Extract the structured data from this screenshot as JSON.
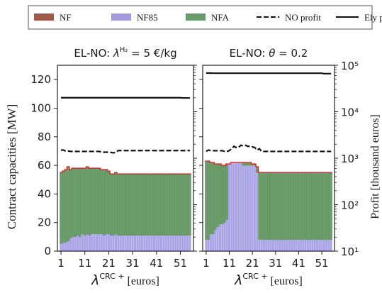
{
  "chart_data": {
    "type": "bar",
    "legend": {
      "placement": "top",
      "entries": [
        {
          "name": "NF",
          "kind": "patch",
          "color": "#a0584a"
        },
        {
          "name": "NF85",
          "kind": "patch",
          "color": "#a49ae0"
        },
        {
          "name": "NFA",
          "kind": "patch",
          "color": "#6a9b6a"
        },
        {
          "name": "NO profit",
          "kind": "dashed-line",
          "color": "#111111"
        },
        {
          "name": "Ely profit",
          "kind": "line",
          "color": "#111111"
        }
      ]
    },
    "ylabel": "Contract capacities [MW]",
    "y2label": "Profit [thousand euros]",
    "colors": {
      "nf85": "#aaa3e6",
      "nfa": "#6c9e6c",
      "envelope": "#e0201a",
      "profit": "#111111"
    },
    "panels": [
      {
        "id": "left",
        "title_prefix": "EL-NO: ",
        "title_math": "λ",
        "title_sup": "H₂",
        "title_suffix": " = 5 €/kg",
        "xlabel_math": "λ",
        "xlabel_sup": "CRC +",
        "xlabel_unit": " [euros]",
        "x": [
          1,
          2,
          3,
          4,
          5,
          6,
          7,
          8,
          9,
          10,
          11,
          12,
          13,
          14,
          15,
          16,
          17,
          18,
          19,
          20,
          21,
          22,
          23,
          24,
          25,
          26,
          27,
          28,
          29,
          30,
          31,
          32,
          33,
          34,
          35,
          36,
          37,
          38,
          39,
          40,
          41,
          42,
          43,
          44,
          45,
          46,
          47,
          48,
          49,
          50,
          51,
          52,
          53,
          54,
          55
        ],
        "xticks": [
          1,
          11,
          21,
          31,
          41,
          51
        ],
        "xlim": [
          -0.5,
          56.5
        ],
        "ylim": [
          0,
          130
        ],
        "yticks": [
          0,
          20,
          40,
          60,
          80,
          100,
          120
        ],
        "y2lim": [
          10,
          100000
        ],
        "y2ticks": [
          10,
          100,
          1000,
          10000,
          100000
        ],
        "y2ticklabels": [
          "10¹",
          "10²",
          "10³",
          "10⁴",
          "10⁵"
        ],
        "series": [
          {
            "name": "NF85",
            "values": [
              5,
              6,
              6,
              7,
              9,
              10,
              10,
              11,
              10,
              12,
              11,
              12,
              11,
              12,
              12,
              12,
              12,
              12,
              11,
              12,
              12,
              11,
              11,
              12,
              11,
              11,
              11,
              11,
              11,
              11,
              11,
              11,
              11,
              11,
              11,
              11,
              11,
              11,
              11,
              11,
              11,
              11,
              11,
              11,
              11,
              11,
              11,
              11,
              11,
              11,
              11,
              11,
              11,
              11,
              11
            ]
          },
          {
            "name": "NFA",
            "values": [
              50,
              50,
              51,
              52,
              48,
              48,
              48,
              47,
              48,
              46,
              47,
              47,
              47,
              46,
              46,
              46,
              46,
              45,
              46,
              45,
              44,
              43,
              43,
              43,
              43,
              43,
              43,
              43,
              43,
              43,
              43,
              43,
              43,
              43,
              43,
              43,
              43,
              43,
              43,
              43,
              43,
              43,
              43,
              43,
              43,
              43,
              43,
              43,
              43,
              43,
              43,
              43,
              43,
              43,
              43
            ]
          },
          {
            "name": "NO profit",
            "values": [
              1500,
              1500,
              1420,
              1430,
              1400,
              1400,
              1400,
              1400,
              1400,
              1400,
              1400,
              1400,
              1400,
              1400,
              1400,
              1400,
              1400,
              1350,
              1350,
              1350,
              1350,
              1330,
              1300,
              1350,
              1460,
              1460,
              1460,
              1460,
              1460,
              1460,
              1460,
              1460,
              1460,
              1460,
              1460,
              1460,
              1460,
              1460,
              1460,
              1460,
              1460,
              1460,
              1460,
              1460,
              1460,
              1460,
              1460,
              1460,
              1460,
              1460,
              1460,
              1460,
              1460,
              1460,
              1460
            ]
          },
          {
            "name": "Ely profit",
            "values": [
              20000,
              20000,
              20000,
              20000,
              20000,
              20000,
              20000,
              20000,
              20000,
              20000,
              20000,
              20000,
              20000,
              20000,
              20000,
              20000,
              20000,
              20000,
              20000,
              20000,
              20000,
              20000,
              20000,
              20000,
              20000,
              20000,
              20000,
              20000,
              20000,
              20000,
              20000,
              20000,
              20000,
              20000,
              20000,
              20000,
              20000,
              20000,
              20000,
              20000,
              20000,
              20000,
              20000,
              20000,
              20000,
              20000,
              20000,
              20000,
              20000,
              20000,
              20000,
              19800,
              19800,
              19800,
              19800
            ]
          }
        ]
      },
      {
        "id": "right",
        "title_prefix": "EL-NO: ",
        "title_math": "θ",
        "title_sup": "",
        "title_suffix": " = 0.2",
        "xlabel_math": "λ",
        "xlabel_sup": "CRC +",
        "xlabel_unit": " [euros]",
        "x": [
          1,
          2,
          3,
          4,
          5,
          6,
          7,
          8,
          9,
          10,
          11,
          12,
          13,
          14,
          15,
          16,
          17,
          18,
          19,
          20,
          21,
          22,
          23,
          24,
          25,
          26,
          27,
          28,
          29,
          30,
          31,
          32,
          33,
          34,
          35,
          36,
          37,
          38,
          39,
          40,
          41,
          42,
          43,
          44,
          45,
          46,
          47,
          48,
          49,
          50,
          51,
          52,
          53,
          54,
          55
        ],
        "xticks": [
          1,
          11,
          21,
          31,
          41,
          51
        ],
        "xlim": [
          -0.5,
          56.5
        ],
        "ylim": [
          0,
          130
        ],
        "yticks": [
          0,
          20,
          40,
          60,
          80,
          100,
          120
        ],
        "y2lim": [
          10,
          100000
        ],
        "y2ticks": [
          10,
          100,
          1000,
          10000,
          100000
        ],
        "y2ticklabels": [
          "10¹",
          "10²",
          "10³",
          "10⁴",
          "10⁵"
        ],
        "series": [
          {
            "name": "NF85",
            "values": [
              8,
              8,
              12,
              12,
              15,
              17,
              19,
              19,
              20,
              22,
              61,
              62,
              62,
              62,
              62,
              62,
              60,
              60,
              60,
              60,
              60,
              60,
              55,
              8,
              8,
              8,
              8,
              8,
              8,
              8,
              8,
              8,
              8,
              8,
              8,
              8,
              8,
              8,
              8,
              8,
              8,
              8,
              8,
              8,
              8,
              8,
              8,
              8,
              8,
              8,
              8,
              8,
              8,
              8,
              8
            ]
          },
          {
            "name": "NFA",
            "values": [
              55,
              55,
              50,
              50,
              46,
              44,
              42,
              41,
              40,
              39,
              0,
              0,
              0,
              0,
              0,
              0,
              2,
              2,
              2,
              2,
              1,
              1,
              4,
              47,
              47,
              47,
              47,
              47,
              47,
              47,
              47,
              47,
              47,
              47,
              47,
              47,
              47,
              47,
              47,
              47,
              47,
              47,
              47,
              47,
              47,
              47,
              47,
              47,
              47,
              47,
              47,
              47,
              47,
              47,
              47
            ]
          },
          {
            "name": "NO profit",
            "values": [
              1400,
              1500,
              1450,
              1450,
              1450,
              1450,
              1450,
              1450,
              1400,
              1400,
              1450,
              1600,
              1800,
              1700,
              1700,
              1900,
              1850,
              1900,
              1800,
              1800,
              1750,
              1700,
              1500,
              1600,
              1400,
              1400,
              1400,
              1400,
              1400,
              1400,
              1400,
              1400,
              1400,
              1400,
              1400,
              1400,
              1400,
              1400,
              1400,
              1400,
              1400,
              1400,
              1400,
              1400,
              1400,
              1400,
              1400,
              1400,
              1400,
              1400,
              1400,
              1400,
              1400,
              1400,
              1400
            ]
          },
          {
            "name": "Ely profit",
            "values": [
              68000,
              68000,
              68000,
              67500,
              67500,
              67500,
              67500,
              67500,
              67500,
              67500,
              67500,
              67500,
              67500,
              67500,
              67500,
              67500,
              67500,
              67500,
              67500,
              67500,
              67500,
              67500,
              67500,
              67500,
              67500,
              67500,
              67500,
              67500,
              67500,
              67500,
              67500,
              67500,
              67500,
              67500,
              67500,
              67500,
              67500,
              67500,
              67500,
              67500,
              67500,
              67500,
              67500,
              67500,
              67500,
              67500,
              67500,
              67500,
              67500,
              67500,
              67500,
              66000,
              66000,
              66000,
              66000
            ]
          }
        ]
      }
    ]
  }
}
